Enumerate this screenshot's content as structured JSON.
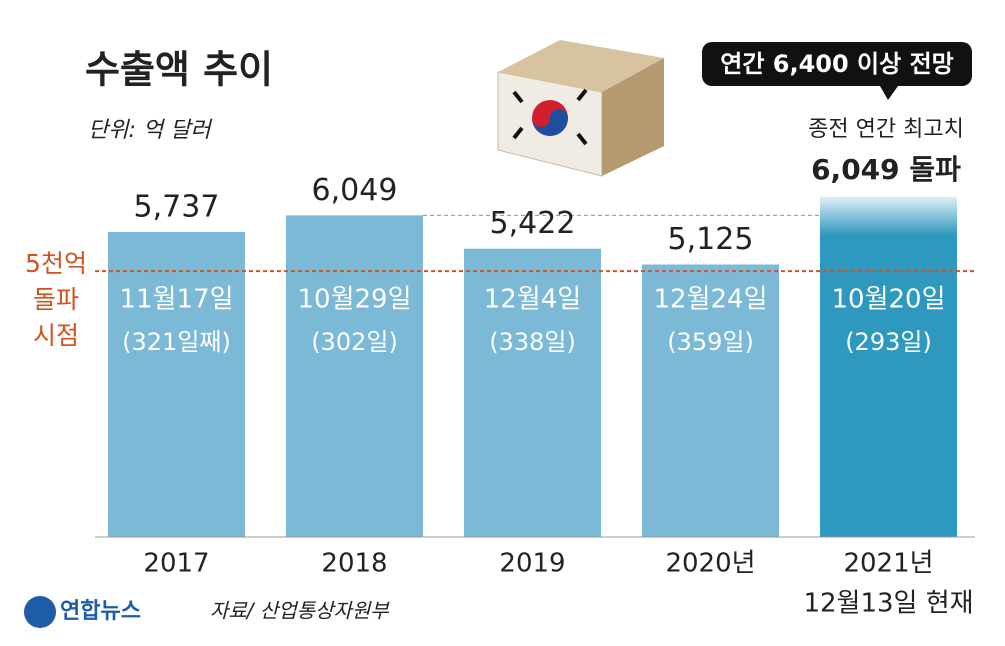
{
  "chart_data": {
    "type": "bar",
    "title": "수출액 추이",
    "subtitle": "단위: 억 달러",
    "categories": [
      "2017",
      "2018",
      "2019",
      "2020년",
      "2021년"
    ],
    "category_note": "12월13일 현재",
    "values": [
      5737,
      6049,
      5422,
      5125,
      6400
    ],
    "value_labels": [
      "5,737",
      "6,049",
      "5,422",
      "5,125",
      null
    ],
    "colors": [
      "#7bb9d6",
      "#7bb9d6",
      "#7bb9d6",
      "#7bb9d6",
      "#2f98bf"
    ],
    "bar_labels": [
      "11월17일",
      "10월29일",
      "12월4일",
      "12월24일",
      "10월20일"
    ],
    "bar_sublabels": [
      "(321일째)",
      "(302일)",
      "(338일)",
      "(359일)",
      "(293일)"
    ],
    "ylim": [
      0,
      10100
    ],
    "reference_line": {
      "value": 5000,
      "label_lines": [
        "5천억",
        "돌파",
        "시점"
      ],
      "color": "#d2541f"
    },
    "callout": "연간 6,400 이상 전망",
    "note_lines": [
      "종전 연간 최고치",
      "6,049 돌파"
    ],
    "source": "자료/ 산업통상자원부",
    "logo": "연합뉴스"
  }
}
